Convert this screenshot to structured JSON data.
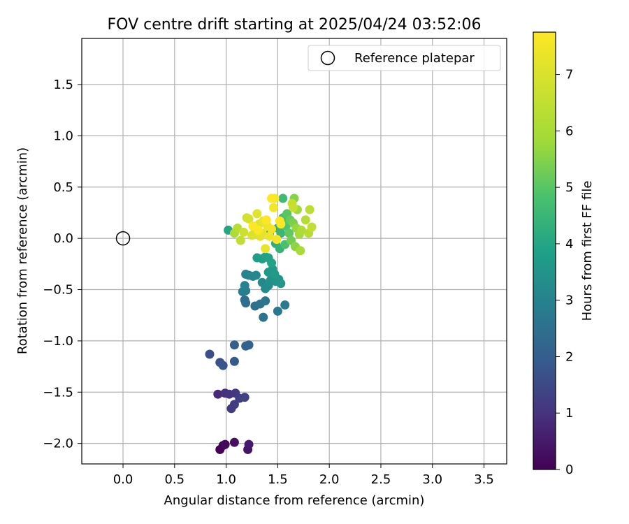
{
  "chart_data": {
    "type": "scatter",
    "title": "FOV centre drift starting at 2025/04/24 03:52:06",
    "xlabel": "Angular distance from reference (arcmin)",
    "ylabel": "Rotation from reference (arcmin)",
    "xlim": [
      -0.4,
      3.72
    ],
    "ylim": [
      -2.2,
      1.95
    ],
    "x_ticks": [
      0.0,
      0.5,
      1.0,
      1.5,
      2.0,
      2.5,
      3.0,
      3.5
    ],
    "x_tick_labels": [
      "0.0",
      "0.5",
      "1.0",
      "1.5",
      "2.0",
      "2.5",
      "3.0",
      "3.5"
    ],
    "y_ticks": [
      -2.0,
      -1.5,
      -1.0,
      -0.5,
      0.0,
      0.5,
      1.0,
      1.5
    ],
    "y_tick_labels": [
      "−2.0",
      "−1.5",
      "−1.0",
      "−0.5",
      "0.0",
      "0.5",
      "1.0",
      "1.5"
    ],
    "grid": true,
    "legend": {
      "position": "top-right",
      "entries": [
        {
          "label": "Reference platepar",
          "marker": "open-circle"
        }
      ]
    },
    "reference_point": {
      "x": 0.0,
      "y": 0.0
    },
    "colorbar": {
      "label": "Hours from first FF file",
      "range": [
        0,
        7.75
      ],
      "ticks": [
        0,
        1,
        2,
        3,
        4,
        5,
        6,
        7
      ],
      "colormap": "viridis"
    },
    "series": [
      {
        "points": [
          [
            0.94,
            -2.06,
            0.0
          ],
          [
            0.97,
            -2.02,
            0.1
          ],
          [
            0.99,
            -2.01,
            0.2
          ],
          [
            1.08,
            -1.99,
            0.3
          ],
          [
            1.21,
            -2.06,
            0.4
          ],
          [
            1.22,
            -2.01,
            0.5
          ],
          [
            0.92,
            -1.52,
            0.8
          ],
          [
            0.99,
            -1.51,
            0.9
          ],
          [
            1.03,
            -1.52,
            1.0
          ],
          [
            1.09,
            -1.51,
            1.1
          ],
          [
            1.05,
            -1.66,
            1.15
          ],
          [
            1.08,
            -1.62,
            1.2
          ],
          [
            1.13,
            -1.56,
            1.25
          ],
          [
            1.18,
            -1.55,
            1.3
          ],
          [
            0.84,
            -1.13,
            1.6
          ],
          [
            0.94,
            -1.21,
            1.7
          ],
          [
            0.97,
            -1.24,
            1.8
          ],
          [
            1.08,
            -1.2,
            1.9
          ],
          [
            1.08,
            -1.04,
            2.0
          ],
          [
            1.19,
            -1.05,
            2.05
          ],
          [
            1.22,
            -1.04,
            2.1
          ],
          [
            1.18,
            -0.6,
            2.4
          ],
          [
            1.19,
            -0.63,
            2.45
          ],
          [
            1.28,
            -0.66,
            2.5
          ],
          [
            1.33,
            -0.64,
            2.55
          ],
          [
            1.36,
            -0.77,
            2.6
          ],
          [
            1.38,
            -0.61,
            2.65
          ],
          [
            1.5,
            -0.71,
            2.7
          ],
          [
            1.57,
            -0.65,
            2.75
          ],
          [
            1.16,
            -0.52,
            2.85
          ],
          [
            1.19,
            -0.51,
            2.9
          ],
          [
            1.18,
            -0.46,
            2.95
          ],
          [
            1.19,
            -0.35,
            3.0
          ],
          [
            1.22,
            -0.36,
            3.05
          ],
          [
            1.26,
            -0.37,
            3.1
          ],
          [
            1.29,
            -0.36,
            3.15
          ],
          [
            1.35,
            -0.43,
            3.2
          ],
          [
            1.38,
            -0.49,
            3.25
          ],
          [
            1.41,
            -0.46,
            3.3
          ],
          [
            1.43,
            -0.41,
            3.35
          ],
          [
            1.46,
            -0.38,
            3.4
          ],
          [
            1.48,
            -0.42,
            3.45
          ],
          [
            1.51,
            -0.4,
            3.5
          ],
          [
            1.53,
            -0.44,
            3.55
          ],
          [
            1.41,
            -0.33,
            3.6
          ],
          [
            1.45,
            -0.3,
            3.65
          ],
          [
            1.47,
            -0.35,
            3.7
          ],
          [
            1.3,
            -0.19,
            3.75
          ],
          [
            1.35,
            -0.2,
            3.8
          ],
          [
            1.38,
            -0.18,
            3.85
          ],
          [
            1.41,
            -0.19,
            3.9
          ],
          [
            1.44,
            -0.24,
            3.95
          ],
          [
            1.02,
            0.08,
            4.0
          ],
          [
            1.42,
            0.04,
            4.1
          ],
          [
            1.48,
            -0.05,
            4.2
          ],
          [
            1.5,
            0.1,
            4.3
          ],
          [
            1.52,
            -0.1,
            4.4
          ],
          [
            1.53,
            0.05,
            4.5
          ],
          [
            1.55,
            0.39,
            4.6
          ],
          [
            1.55,
            0.2,
            4.7
          ],
          [
            1.57,
            -0.06,
            4.8
          ],
          [
            1.58,
            0.12,
            4.9
          ],
          [
            1.59,
            0.24,
            5.0
          ],
          [
            1.61,
            0.05,
            5.1
          ],
          [
            1.62,
            0.18,
            5.2
          ],
          [
            1.63,
            -0.02,
            5.3
          ],
          [
            1.65,
            0.15,
            5.4
          ],
          [
            1.66,
            0.39,
            5.5
          ],
          [
            1.67,
            -0.08,
            5.6
          ],
          [
            1.68,
            0.1,
            5.7
          ],
          [
            1.69,
            0.28,
            5.8
          ],
          [
            1.71,
            0.04,
            5.9
          ],
          [
            1.72,
            -0.12,
            6.0
          ],
          [
            1.73,
            0.08,
            6.1
          ],
          [
            1.77,
            0.18,
            6.2
          ],
          [
            1.8,
            0.05,
            6.3
          ],
          [
            1.81,
            0.28,
            6.4
          ],
          [
            1.83,
            0.11,
            6.5
          ],
          [
            1.64,
            0.34,
            6.55
          ],
          [
            1.65,
            0.3,
            6.6
          ],
          [
            1.08,
            0.05,
            6.1
          ],
          [
            1.11,
            0.1,
            6.3
          ],
          [
            1.14,
            -0.02,
            6.5
          ],
          [
            1.17,
            0.06,
            6.7
          ],
          [
            1.2,
            0.2,
            6.8
          ],
          [
            1.22,
            0.19,
            6.9
          ],
          [
            1.25,
            0.03,
            7.0
          ],
          [
            1.28,
            0.09,
            7.05
          ],
          [
            1.3,
            0.24,
            7.1
          ],
          [
            1.32,
            0.14,
            7.15
          ],
          [
            1.33,
            0.02,
            7.2
          ],
          [
            1.35,
            0.05,
            7.25
          ],
          [
            1.36,
            0.17,
            7.3
          ],
          [
            1.38,
            -0.1,
            7.35
          ],
          [
            1.4,
            0.12,
            7.4
          ],
          [
            1.42,
            0.02,
            7.45
          ],
          [
            1.44,
            0.09,
            7.5
          ],
          [
            1.46,
            0.3,
            7.55
          ],
          [
            1.47,
            0.39,
            7.6
          ],
          [
            1.49,
            -0.01,
            7.65
          ],
          [
            1.52,
            0.17,
            7.7
          ],
          [
            1.53,
            0.14,
            7.72
          ],
          [
            1.44,
            0.39,
            7.74
          ],
          [
            1.31,
            0.08,
            7.74
          ],
          [
            1.39,
            0.18,
            7.73
          ],
          [
            1.26,
            0.12,
            7.71
          ]
        ]
      }
    ]
  }
}
